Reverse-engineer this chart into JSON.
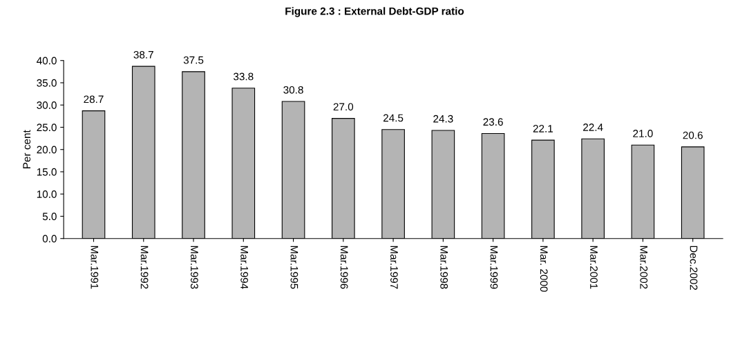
{
  "chart_data": {
    "type": "bar",
    "title": "Figure 2.3 : External Debt-GDP ratio",
    "ylabel": "Per cent",
    "categories": [
      "Mar.1991",
      "Mar.1992",
      "Mar.1993",
      "Mar.1994",
      "Mar.1995",
      "Mar.1996",
      "Mar.1997",
      "Mar.1998",
      "Mar.1999",
      "Mar. 2000",
      "Mar.2001",
      "Mar.2002",
      "Dec.2002"
    ],
    "values": [
      28.7,
      38.7,
      37.5,
      33.8,
      30.8,
      27.0,
      24.5,
      24.3,
      23.6,
      22.1,
      22.4,
      21.0,
      20.6
    ],
    "value_labels": [
      "28.7",
      "38.7",
      "37.5",
      "33.8",
      "30.8",
      "27.0",
      "24.5",
      "24.3",
      "23.6",
      "22.1",
      "22.4",
      "21.0",
      "20.6"
    ],
    "color": "#b4b4b4",
    "ylim": [
      0,
      40
    ],
    "yticks": [
      {
        "value": 0,
        "label": "0.0"
      },
      {
        "value": 5,
        "label": "5.0"
      },
      {
        "value": 10,
        "label": "10.0"
      },
      {
        "value": 15,
        "label": "15.0"
      },
      {
        "value": 20,
        "label": "20.0"
      },
      {
        "value": 25,
        "label": "25.0"
      },
      {
        "value": 30,
        "label": "30.0"
      },
      {
        "value": 35,
        "label": "35.0"
      },
      {
        "value": 40,
        "label": "40.0"
      }
    ],
    "grid": false,
    "legend": false
  }
}
